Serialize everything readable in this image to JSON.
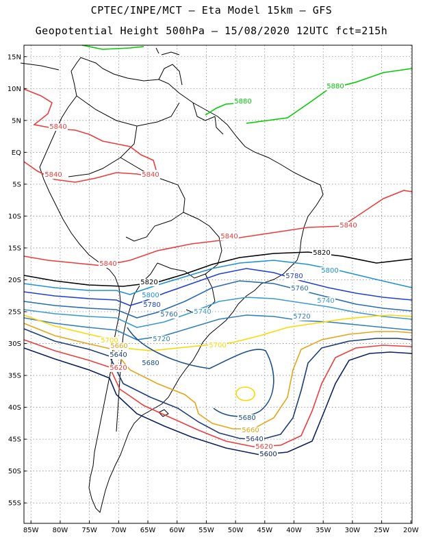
{
  "title_line1": "CPTEC/INPE/MCT —  Eta Model 15km — GFS",
  "title_line2": "Geopotential Height 500hPa — 15/08/2020 12UTC fct=215h",
  "lat_ticks": [
    {
      "label": "15N",
      "lat": 15
    },
    {
      "label": "10N",
      "lat": 10
    },
    {
      "label": "5N",
      "lat": 5
    },
    {
      "label": "EQ",
      "lat": 0
    },
    {
      "label": "5S",
      "lat": -5
    },
    {
      "label": "10S",
      "lat": -10
    },
    {
      "label": "15S",
      "lat": -15
    },
    {
      "label": "20S",
      "lat": -20
    },
    {
      "label": "25S",
      "lat": -25
    },
    {
      "label": "30S",
      "lat": -30
    },
    {
      "label": "35S",
      "lat": -35
    },
    {
      "label": "40S",
      "lat": -40
    },
    {
      "label": "45S",
      "lat": -45
    },
    {
      "label": "50S",
      "lat": -50
    },
    {
      "label": "55S",
      "lat": -55
    }
  ],
  "lon_ticks": [
    {
      "label": "85W",
      "lon": -85
    },
    {
      "label": "80W",
      "lon": -80
    },
    {
      "label": "75W",
      "lon": -75
    },
    {
      "label": "70W",
      "lon": -70
    },
    {
      "label": "65W",
      "lon": -65
    },
    {
      "label": "60W",
      "lon": -60
    },
    {
      "label": "55W",
      "lon": -55
    },
    {
      "label": "50W",
      "lon": -50
    },
    {
      "label": "45W",
      "lon": -45
    },
    {
      "label": "40W",
      "lon": -40
    },
    {
      "label": "35W",
      "lon": -35
    },
    {
      "label": "30W",
      "lon": -30
    },
    {
      "label": "25W",
      "lon": -25
    },
    {
      "label": "20W",
      "lon": -20
    }
  ],
  "contours": [
    {
      "value": "5880",
      "color": "#00cc00",
      "labels": [
        "5880",
        "5880"
      ]
    },
    {
      "value": "5840",
      "color": "#ee3b3b",
      "labels": [
        "5840",
        "5840",
        "5840",
        "5840",
        "5840",
        "5840"
      ]
    },
    {
      "value": "5820",
      "color": "#000000",
      "labels": [
        "5820",
        "5820"
      ]
    },
    {
      "value": "5800",
      "color": "#1e90d8",
      "labels": [
        "5800",
        "5800"
      ]
    },
    {
      "value": "5780",
      "color": "#1e3fd8",
      "labels": [
        "5780",
        "5780"
      ]
    },
    {
      "value": "5760",
      "color": "#2a6ab0",
      "labels": [
        "5760",
        "5760"
      ]
    },
    {
      "value": "5740",
      "color": "#3a9ad0",
      "labels": [
        "5740",
        "5740"
      ]
    },
    {
      "value": "5720",
      "color": "#2f7fbf",
      "labels": [
        "5720",
        "5720"
      ]
    },
    {
      "value": "5700",
      "color": "#ffd700",
      "labels": [
        "5700",
        "5700"
      ]
    },
    {
      "value": "5660",
      "color": "#e8a317",
      "labels": [
        "5660",
        "5660"
      ]
    },
    {
      "value": "5640",
      "color": "#1c3d7a",
      "labels": [
        "5640",
        "5640"
      ]
    },
    {
      "value": "5620",
      "color": "#ee3b3b",
      "labels": [
        "5620",
        "5620"
      ]
    },
    {
      "value": "5600",
      "color": "#0a1f5c",
      "labels": [
        "5600"
      ]
    },
    {
      "value": "5680",
      "color": "#1c4f8a",
      "labels": [
        "5680",
        "5680"
      ]
    }
  ],
  "colors": {
    "grid": "#888888",
    "land": "#000000",
    "frame": "#000000"
  }
}
